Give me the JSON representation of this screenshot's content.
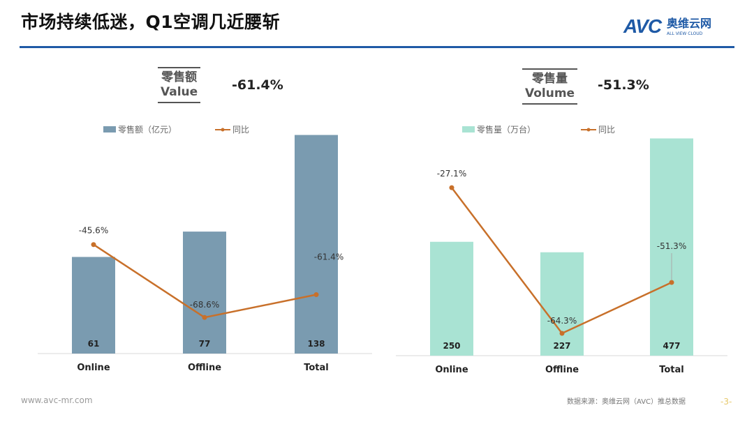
{
  "header": {
    "title": "市场持续低迷，Q1空调几近腰斩",
    "logo_text": "AVC",
    "logo_cn": "奥维云网",
    "logo_en": "ALL VIEW CLOUD"
  },
  "footer": {
    "url": "www.avc-mr.com",
    "source": "数据来源：奥维云网（AVC）推总数据",
    "page": "-3-"
  },
  "kpis": [
    {
      "label_cn": "零售额",
      "label_en": "Value",
      "value": "-61.4%"
    },
    {
      "label_cn": "零售量",
      "label_en": "Volume",
      "value": "-51.3%"
    }
  ],
  "chart_data": [
    {
      "type": "bar",
      "categories": [
        "Online",
        "Offline",
        "Total"
      ],
      "series": [
        {
          "name": "零售额（亿元）",
          "kind": "bar",
          "values": [
            61,
            77,
            138
          ],
          "labels": [
            "61",
            "77",
            "138"
          ],
          "color": "#7a9bb0"
        },
        {
          "name": "同比",
          "kind": "line",
          "values": [
            -45.6,
            -68.6,
            -61.4
          ],
          "labels": [
            "-45.6%",
            "-68.6%",
            "-61.4%"
          ],
          "color": "#c8702a"
        }
      ],
      "ylim": [
        0,
        140
      ],
      "y2lim": [
        -80,
        -10
      ],
      "legend": "top",
      "grid": false
    },
    {
      "type": "bar",
      "categories": [
        "Online",
        "Offline",
        "Total"
      ],
      "series": [
        {
          "name": "零售量（万台）",
          "kind": "bar",
          "values": [
            250,
            227,
            477
          ],
          "labels": [
            "250",
            "227",
            "477"
          ],
          "color": "#a9e3d3"
        },
        {
          "name": "同比",
          "kind": "line",
          "values": [
            -27.1,
            -64.3,
            -51.3
          ],
          "labels": [
            "-27.1%",
            "-64.3%",
            "-51.3%"
          ],
          "color": "#c8702a"
        }
      ],
      "ylim": [
        0,
        490
      ],
      "y2lim": [
        -70,
        -13
      ],
      "legend": "top",
      "grid": false
    }
  ]
}
